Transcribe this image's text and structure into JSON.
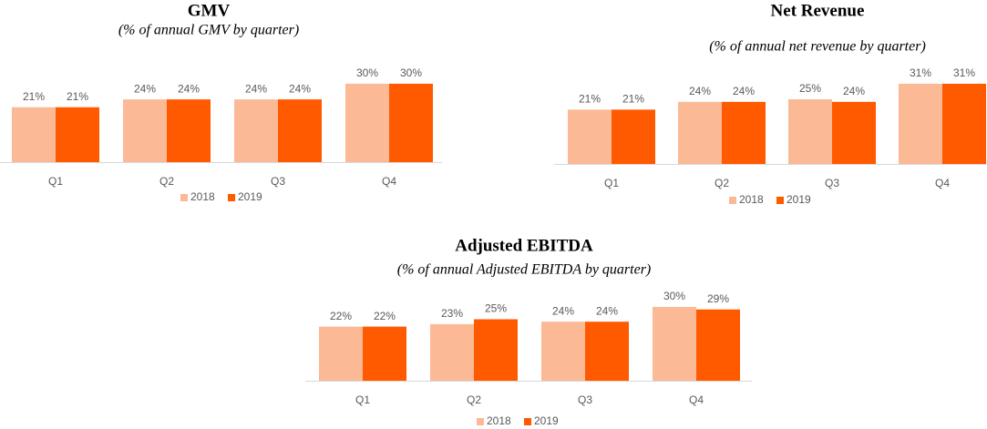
{
  "chart_data": [
    {
      "type": "bar",
      "title": "GMV",
      "subtitle": "(% of annual GMV by quarter)",
      "categories": [
        "Q1",
        "Q2",
        "Q3",
        "Q4"
      ],
      "series": [
        {
          "name": "2018",
          "color": "#fbb995",
          "values": [
            21,
            24,
            24,
            30
          ],
          "value_labels": [
            "21%",
            "24%",
            "24%",
            "30%"
          ]
        },
        {
          "name": "2019",
          "color": "#ff5a00",
          "values": [
            21,
            24,
            24,
            30
          ],
          "value_labels": [
            "21%",
            "24%",
            "24%",
            "30%"
          ]
        }
      ]
    },
    {
      "type": "bar",
      "title": "Net Revenue",
      "subtitle": "(% of annual net revenue by quarter)",
      "categories": [
        "Q1",
        "Q2",
        "Q3",
        "Q4"
      ],
      "series": [
        {
          "name": "2018",
          "color": "#fbb995",
          "values": [
            21,
            24,
            25,
            31
          ],
          "value_labels": [
            "21%",
            "24%",
            "25%",
            "31%"
          ]
        },
        {
          "name": "2019",
          "color": "#ff5a00",
          "values": [
            21,
            24,
            24,
            31
          ],
          "value_labels": [
            "21%",
            "24%",
            "24%",
            "31%"
          ]
        }
      ]
    },
    {
      "type": "bar",
      "title": "Adjusted EBITDA",
      "subtitle": "(% of annual Adjusted EBITDA by quarter)",
      "categories": [
        "Q1",
        "Q2",
        "Q3",
        "Q4"
      ],
      "series": [
        {
          "name": "2018",
          "color": "#fbb995",
          "values": [
            22,
            23,
            24,
            30
          ],
          "value_labels": [
            "22%",
            "23%",
            "24%",
            "30%"
          ]
        },
        {
          "name": "2019",
          "color": "#ff5a00",
          "values": [
            22,
            25,
            24,
            29
          ],
          "value_labels": [
            "22%",
            "25%",
            "24%",
            "29%"
          ]
        }
      ]
    }
  ]
}
